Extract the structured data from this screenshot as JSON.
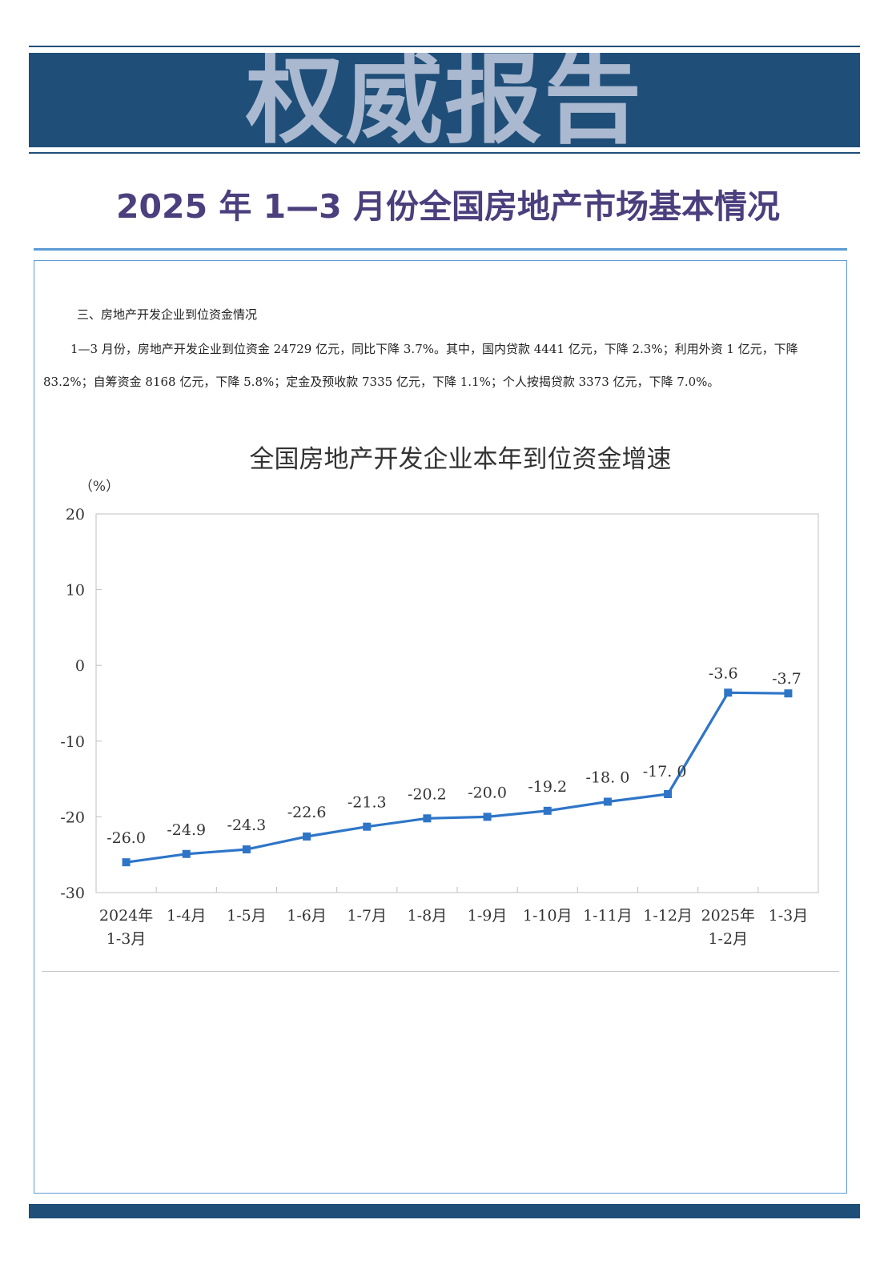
{
  "banner": {
    "title": "权威报告"
  },
  "report": {
    "title": "2025 年 1—3 月份全国房地产市场基本情况"
  },
  "section": {
    "heading": "三、房地产开发企业到位资金情况",
    "paragraph_line1": "1—3 月份，房地产开发企业到位资金 24729 亿元，同比下降 3.7%。其中，国内贷款 4441 亿元，下降 2.3%；利用外资 1 亿元，下降",
    "paragraph_line2": "83.2%；自筹资金 8168 亿元，下降 5.8%；定金及预收款 7335 亿元，下降 1.1%；个人按揭贷款 3373 亿元，下降 7.0%。"
  },
  "colors": {
    "banner_bg": "#1f4e79",
    "banner_text": "#aab9cf",
    "title_text": "#4b3f7d",
    "accent_line": "#5b9bd5",
    "series_line": "#2e75c8"
  },
  "chart_data": {
    "type": "line",
    "title": "全国房地产开发企业本年到位资金增速",
    "ylabel": "（%）",
    "xlabel": "",
    "ylim": [
      -30,
      20
    ],
    "yticks": [
      "20",
      "10",
      "0",
      "-10",
      "-20",
      "-30"
    ],
    "grid": false,
    "categories": [
      [
        "2024年",
        "1-3月"
      ],
      [
        "1-4月"
      ],
      [
        "1-5月"
      ],
      [
        "1-6月"
      ],
      [
        "1-7月"
      ],
      [
        "1-8月"
      ],
      [
        "1-9月"
      ],
      [
        "1-10月"
      ],
      [
        "1-11月"
      ],
      [
        "1-12月"
      ],
      [
        "2025年",
        "1-2月"
      ],
      [
        "1-3月"
      ]
    ],
    "values": [
      -26.0,
      -24.9,
      -24.3,
      -22.6,
      -21.3,
      -20.2,
      -20.0,
      -19.2,
      -18.0,
      -17.0,
      -3.6,
      -3.7
    ],
    "data_labels": [
      "-26.0",
      "-24.9",
      "-24.3",
      "-22.6",
      "-21.3",
      "-20.2",
      "-20.0",
      "-19.2",
      "-18. 0",
      "-17. 0",
      "-3.6",
      "-3.7"
    ]
  }
}
